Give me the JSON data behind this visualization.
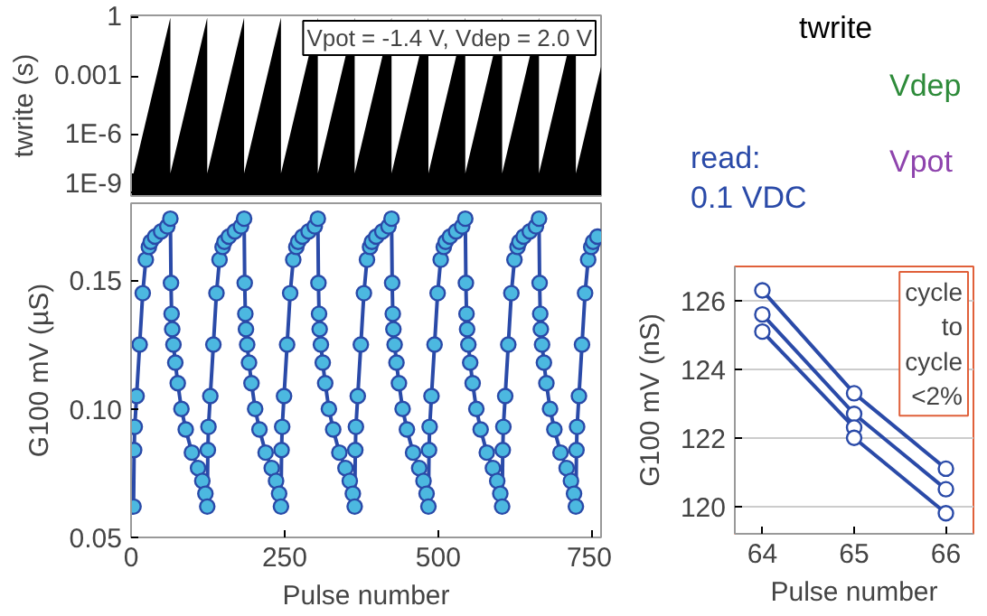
{
  "chart_data": [
    {
      "type": "area",
      "ylabel": "twrite (s)",
      "log": true,
      "tick_labels": "y",
      "xlim": [
        0,
        765
      ],
      "ylim": [
        7e-10,
        1.3
      ],
      "yticks": [
        {
          "value": 1,
          "label": "1"
        },
        {
          "value": 0.001,
          "label": "0.001"
        },
        {
          "value": 1e-06,
          "label": "1E-6"
        },
        {
          "value": 1e-09,
          "label": "1E-9"
        }
      ],
      "annotations": [
        "Vpot = -1.4 V, Vdep = 2.0 V",
        "twrite",
        "Vdep",
        "read:",
        "0.1 VDC",
        "Vpot"
      ],
      "series": [
        {
          "color": "#000000",
          "x": [
            0,
            4,
            64,
            64,
            124,
            124,
            184,
            184,
            244,
            244,
            304,
            304,
            364,
            364,
            424,
            424,
            484,
            484,
            544,
            544,
            604,
            604,
            664,
            664,
            724,
            724,
            765
          ],
          "values": [
            1e-08,
            1e-08,
            1,
            1e-08,
            1,
            1e-08,
            1,
            1e-08,
            1,
            1e-08,
            1,
            1e-08,
            1,
            1e-08,
            1,
            1e-08,
            1,
            1e-08,
            1,
            1e-08,
            1,
            1e-08,
            1,
            1e-08,
            1,
            1e-08,
            0.003
          ]
        }
      ]
    },
    {
      "type": "line",
      "marker": "circle",
      "xlabel": "Pulse number",
      "ylabel": "G100 mV (µS)",
      "xlim": [
        0,
        765
      ],
      "ylim": [
        0.05,
        0.18
      ],
      "xticks": [
        0,
        250,
        500,
        750
      ],
      "yticks": [
        {
          "value": 0.05,
          "label": "0.05"
        },
        {
          "value": 0.1,
          "label": "0.10"
        },
        {
          "value": 0.15,
          "label": "0.15"
        }
      ],
      "series": [
        {
          "color": "#2a4aa8",
          "x": [
            4,
            5,
            6,
            9,
            14,
            19,
            24,
            29,
            32,
            39,
            49,
            59,
            64,
            65,
            66,
            67,
            69,
            72,
            76,
            82,
            89,
            99,
            109,
            116,
            121,
            124,
            125,
            126,
            129,
            134,
            139,
            144,
            149,
            152,
            159,
            169,
            179,
            184,
            185,
            186,
            187,
            189,
            192,
            196,
            202,
            209,
            219,
            229,
            236,
            241,
            244,
            245,
            246,
            249,
            254,
            259,
            264,
            269,
            272,
            279,
            289,
            299,
            304,
            305,
            306,
            307,
            309,
            312,
            316,
            322,
            329,
            339,
            349,
            356,
            361,
            364,
            365,
            366,
            369,
            374,
            379,
            384,
            389,
            392,
            399,
            409,
            419,
            424,
            425,
            426,
            427,
            429,
            432,
            436,
            442,
            449,
            459,
            469,
            476,
            481,
            484,
            485,
            486,
            489,
            494,
            499,
            504,
            509,
            512,
            519,
            529,
            539,
            544,
            545,
            546,
            547,
            549,
            552,
            556,
            562,
            569,
            579,
            589,
            596,
            601,
            604,
            605,
            606,
            609,
            614,
            619,
            624,
            629,
            632,
            639,
            649,
            659,
            664,
            665,
            666,
            667,
            669,
            672,
            676,
            682,
            689,
            699,
            709,
            716,
            721,
            724,
            725,
            726,
            729,
            734,
            739,
            744,
            749,
            752,
            759
          ],
          "values": [
            0.062,
            0.084,
            0.093,
            0.105,
            0.125,
            0.145,
            0.158,
            0.163,
            0.165,
            0.167,
            0.169,
            0.171,
            0.174,
            0.149,
            0.137,
            0.131,
            0.125,
            0.118,
            0.11,
            0.1,
            0.092,
            0.083,
            0.077,
            0.072,
            0.067,
            0.062,
            0.084,
            0.093,
            0.105,
            0.125,
            0.145,
            0.158,
            0.163,
            0.165,
            0.167,
            0.169,
            0.171,
            0.174,
            0.149,
            0.137,
            0.131,
            0.125,
            0.118,
            0.11,
            0.1,
            0.092,
            0.083,
            0.077,
            0.072,
            0.067,
            0.062,
            0.084,
            0.093,
            0.105,
            0.125,
            0.145,
            0.158,
            0.163,
            0.165,
            0.167,
            0.169,
            0.171,
            0.174,
            0.149,
            0.137,
            0.131,
            0.125,
            0.118,
            0.11,
            0.1,
            0.092,
            0.083,
            0.077,
            0.072,
            0.067,
            0.062,
            0.084,
            0.093,
            0.105,
            0.125,
            0.145,
            0.158,
            0.163,
            0.165,
            0.167,
            0.169,
            0.171,
            0.174,
            0.149,
            0.137,
            0.131,
            0.125,
            0.118,
            0.11,
            0.1,
            0.092,
            0.083,
            0.077,
            0.072,
            0.067,
            0.062,
            0.084,
            0.093,
            0.105,
            0.125,
            0.145,
            0.158,
            0.163,
            0.165,
            0.167,
            0.169,
            0.171,
            0.174,
            0.149,
            0.137,
            0.131,
            0.125,
            0.118,
            0.11,
            0.1,
            0.092,
            0.083,
            0.077,
            0.072,
            0.067,
            0.062,
            0.084,
            0.093,
            0.105,
            0.125,
            0.145,
            0.158,
            0.163,
            0.165,
            0.167,
            0.169,
            0.171,
            0.174,
            0.149,
            0.137,
            0.131,
            0.125,
            0.118,
            0.11,
            0.1,
            0.092,
            0.083,
            0.077,
            0.072,
            0.067,
            0.062,
            0.084,
            0.093,
            0.105,
            0.125,
            0.145,
            0.158,
            0.163,
            0.165,
            0.167
          ]
        }
      ]
    },
    {
      "type": "line",
      "marker": "circle",
      "xlabel": "Pulse number",
      "ylabel": "G100 mV (nS)",
      "xlim": [
        63.7,
        66.3
      ],
      "ylim": [
        119.2,
        127
      ],
      "xticks": [
        64,
        65,
        66
      ],
      "yticks": [
        120,
        122,
        124,
        126
      ],
      "grid": "y",
      "annotations": [
        "cycle to cycle <2%"
      ],
      "series": [
        {
          "color": "#2a4aa8",
          "x": [
            64,
            65,
            66
          ],
          "values": [
            126.3,
            123.3,
            121.1
          ]
        },
        {
          "color": "#2a4aa8",
          "x": [
            64,
            65,
            66
          ],
          "values": [
            125.6,
            122.7,
            120.5
          ]
        },
        {
          "color": "#2a4aa8",
          "x": [
            64,
            65
          ],
          "values": [
            125.1,
            122.3
          ]
        },
        {
          "color": "#2a4aa8",
          "x": [
            65,
            66
          ],
          "values": [
            122.0,
            119.8
          ]
        }
      ]
    }
  ]
}
